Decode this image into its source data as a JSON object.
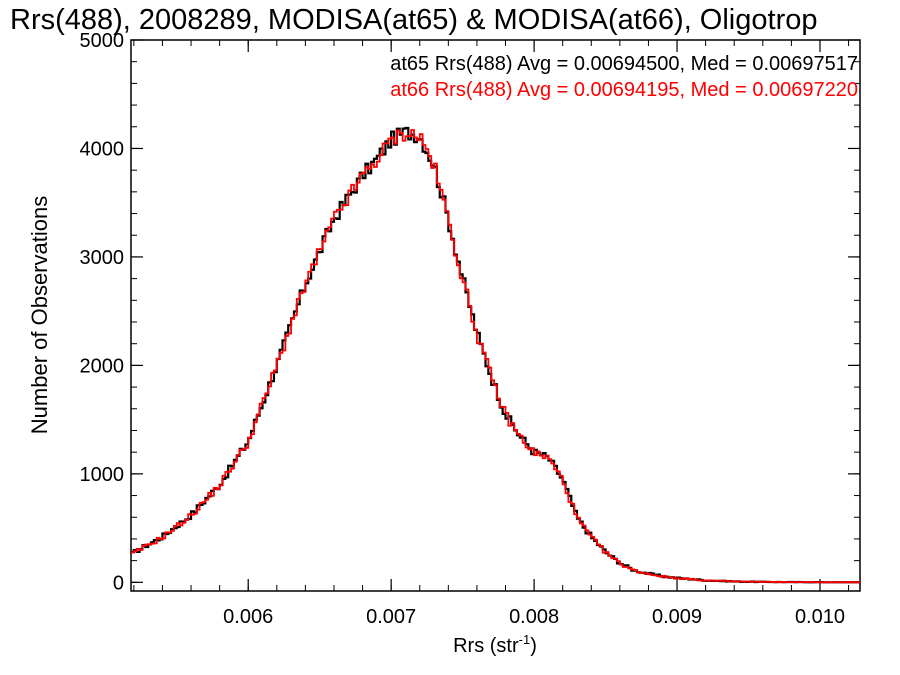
{
  "chart_data": {
    "type": "line",
    "step": true,
    "title": "Rrs(488), 2008289, MODISA(at65) & MODISA(at66), Oligotrop",
    "xlabel": "Rrs (str",
    "xlabel_sup": "-1",
    "xlabel_close": ")",
    "ylabel": "Number of Observations",
    "xlim": [
      0.00518,
      0.01028
    ],
    "ylim": [
      -80,
      5000
    ],
    "x_ticks": [
      0.006,
      0.007,
      0.008,
      0.009,
      0.01
    ],
    "x_tick_labels": [
      "0.006",
      "0.007",
      "0.008",
      "0.009",
      "0.010"
    ],
    "y_ticks": [
      0,
      1000,
      2000,
      3000,
      4000,
      5000
    ],
    "y_tick_labels": [
      "0",
      "1000",
      "2000",
      "3000",
      "4000",
      "5000"
    ],
    "x_minor_step": 0.0002,
    "y_minor_step": 200,
    "grid": false,
    "legend_position": "top-right",
    "annotations": [
      {
        "text": "at65 Rrs(488) Avg = 0.00694500, Med = 0.00697517",
        "color": "#000000"
      },
      {
        "text": "at66 Rrs(488) Avg = 0.00694195, Med = 0.00697220",
        "color": "#ff0000"
      }
    ],
    "bin_width": 2e-05,
    "curve_x": [
      0.00518,
      0.0054,
      0.0056,
      0.0058,
      0.006,
      0.0062,
      0.0064,
      0.0066,
      0.0068,
      0.0069,
      0.007,
      0.0071,
      0.0072,
      0.0073,
      0.0074,
      0.0075,
      0.0076,
      0.0077,
      0.0078,
      0.0079,
      0.008,
      0.0081,
      0.0082,
      0.0083,
      0.0084,
      0.0085,
      0.0086,
      0.0087,
      0.0088,
      0.0089,
      0.009,
      0.0092,
      0.0094,
      0.0096,
      0.0098,
      0.01,
      0.01028
    ],
    "series": [
      {
        "name": "at65",
        "color": "#000000",
        "values": [
          260,
          420,
          620,
          900,
          1300,
          2000,
          2750,
          3350,
          3750,
          3900,
          4080,
          4150,
          4120,
          3850,
          3350,
          2800,
          2300,
          1900,
          1550,
          1350,
          1200,
          1150,
          950,
          600,
          420,
          280,
          180,
          110,
          80,
          55,
          40,
          18,
          8,
          4,
          2,
          1,
          0
        ]
      },
      {
        "name": "at66",
        "color": "#ff0000",
        "values": [
          255,
          415,
          615,
          895,
          1295,
          1995,
          2745,
          3345,
          3745,
          3895,
          4075,
          4145,
          4115,
          3845,
          3345,
          2795,
          2295,
          1895,
          1545,
          1345,
          1195,
          1145,
          945,
          595,
          415,
          275,
          175,
          108,
          78,
          54,
          39,
          17,
          8,
          4,
          2,
          1,
          0
        ]
      }
    ]
  }
}
